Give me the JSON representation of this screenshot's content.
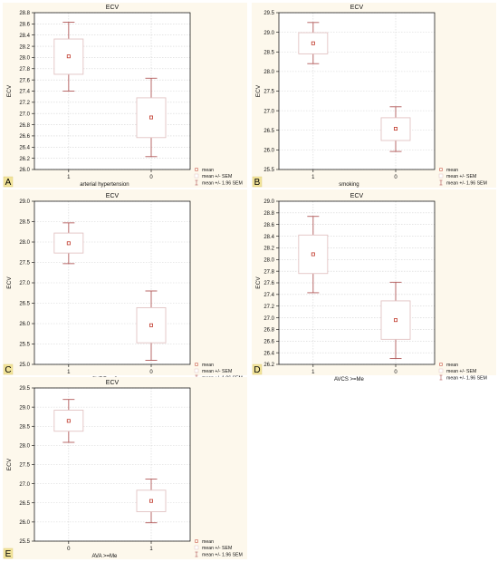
{
  "colors": {
    "panel_bg": "#fdf8ec",
    "badge_bg": "#f2e49a",
    "box_stroke": "#e2c3c3",
    "whisker": "#b25a5a",
    "mean_marker": "#c0392b",
    "grid": "#d4d4d4",
    "axis": "#000000"
  },
  "legend": {
    "mean": "mean",
    "sem": "mean +/- SEM",
    "ci": "mean +/- 1.96 SEM"
  },
  "chart_data": [
    {
      "panel": "A",
      "type": "box (mean ± SEM, whiskers ± 1.96 SEM)",
      "title": "ECV",
      "ylabel": "ECV",
      "xlabel": "arterial hypertension",
      "yticks": [
        "26.0",
        "26.2",
        "26.4",
        "26.6",
        "26.8",
        "27.0",
        "27.2",
        "27.4",
        "27.6",
        "27.8",
        "28.0",
        "28.2",
        "28.4",
        "28.6",
        "28.8"
      ],
      "ylim": [
        26.0,
        28.8
      ],
      "categories": [
        "1",
        "0"
      ],
      "mean": [
        28.02,
        26.93
      ],
      "sem_low": [
        27.7,
        26.57
      ],
      "sem_high": [
        28.33,
        27.28
      ],
      "ci_low": [
        27.4,
        26.23
      ],
      "ci_high": [
        28.63,
        27.63
      ],
      "grid": true
    },
    {
      "panel": "B",
      "type": "box (mean ± SEM, whiskers ± 1.96 SEM)",
      "title": "ECV",
      "ylabel": "ECV",
      "xlabel": "smoking",
      "yticks": [
        "25.5",
        "26.0",
        "26.5",
        "27.0",
        "27.5",
        "28.0",
        "28.5",
        "29.0",
        "29.5"
      ],
      "ylim": [
        25.5,
        29.5
      ],
      "categories": [
        "1",
        "0"
      ],
      "mean": [
        28.72,
        26.54
      ],
      "sem_low": [
        28.45,
        26.24
      ],
      "sem_high": [
        28.99,
        26.82
      ],
      "ci_low": [
        28.2,
        25.96
      ],
      "ci_high": [
        29.25,
        27.1
      ],
      "grid": true
    },
    {
      "panel": "C",
      "type": "box (mean ± SEM, whiskers ± 1.96 SEM)",
      "title": "ECV",
      "ylabel": "ECV",
      "xlabel": "CVRF >=3",
      "yticks": [
        "25.0",
        "25.5",
        "26.0",
        "26.5",
        "27.0",
        "27.5",
        "28.0",
        "28.5",
        "29.0"
      ],
      "ylim": [
        25.0,
        29.0
      ],
      "categories": [
        "1",
        "0"
      ],
      "mean": [
        27.97,
        25.96
      ],
      "sem_low": [
        27.73,
        25.53
      ],
      "sem_high": [
        28.22,
        26.39
      ],
      "ci_low": [
        27.47,
        25.1
      ],
      "ci_high": [
        28.47,
        26.8
      ],
      "grid": true
    },
    {
      "panel": "D",
      "type": "box (mean ± SEM, whiskers ± 1.96 SEM)",
      "title": "ECV",
      "ylabel": "ECV",
      "xlabel": "AVCS >=Me",
      "yticks": [
        "26.2",
        "26.4",
        "26.6",
        "26.8",
        "27.0",
        "27.2",
        "27.4",
        "27.6",
        "27.8",
        "28.0",
        "28.2",
        "28.4",
        "28.6",
        "28.8",
        "29.0"
      ],
      "ylim": [
        26.2,
        29.0
      ],
      "categories": [
        "1",
        "0"
      ],
      "mean": [
        28.09,
        26.96
      ],
      "sem_low": [
        27.76,
        26.63
      ],
      "sem_high": [
        28.42,
        27.29
      ],
      "ci_low": [
        27.43,
        26.3
      ],
      "ci_high": [
        28.74,
        27.61
      ],
      "grid": true
    },
    {
      "panel": "E",
      "type": "box (mean ± SEM, whiskers ± 1.96 SEM)",
      "title": "ECV",
      "ylabel": "ECV",
      "xlabel": "AVA >=Me",
      "yticks": [
        "25.5",
        "26.0",
        "26.5",
        "27.0",
        "27.5",
        "28.0",
        "28.5",
        "29.0",
        "29.5"
      ],
      "ylim": [
        25.5,
        29.5
      ],
      "categories": [
        "0",
        "1"
      ],
      "mean": [
        28.64,
        26.55
      ],
      "sem_low": [
        28.37,
        26.27
      ],
      "sem_high": [
        28.92,
        26.83
      ],
      "ci_low": [
        28.08,
        25.98
      ],
      "ci_high": [
        29.2,
        27.12
      ],
      "grid": true
    }
  ]
}
